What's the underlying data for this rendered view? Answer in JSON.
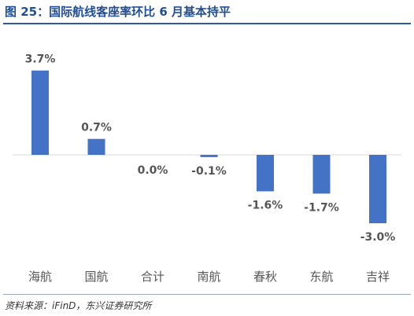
{
  "header": {
    "title": "图 25：国际航线客座率环比 6 月基本持平"
  },
  "footer": {
    "source": "资料来源：iFinD，东兴证券研究所"
  },
  "chart_data": {
    "type": "bar",
    "categories": [
      "海航",
      "国航",
      "合计",
      "南航",
      "春秋",
      "东航",
      "吉祥"
    ],
    "values": [
      3.7,
      0.7,
      0.0,
      -0.1,
      -1.6,
      -1.7,
      -3.0
    ],
    "value_labels": [
      "3.7%",
      "0.7%",
      "0.0%",
      "-0.1%",
      "-1.6%",
      "-1.7%",
      "-3.0%"
    ],
    "bar_color": "#4472c4",
    "grid": false,
    "legend": "none"
  }
}
